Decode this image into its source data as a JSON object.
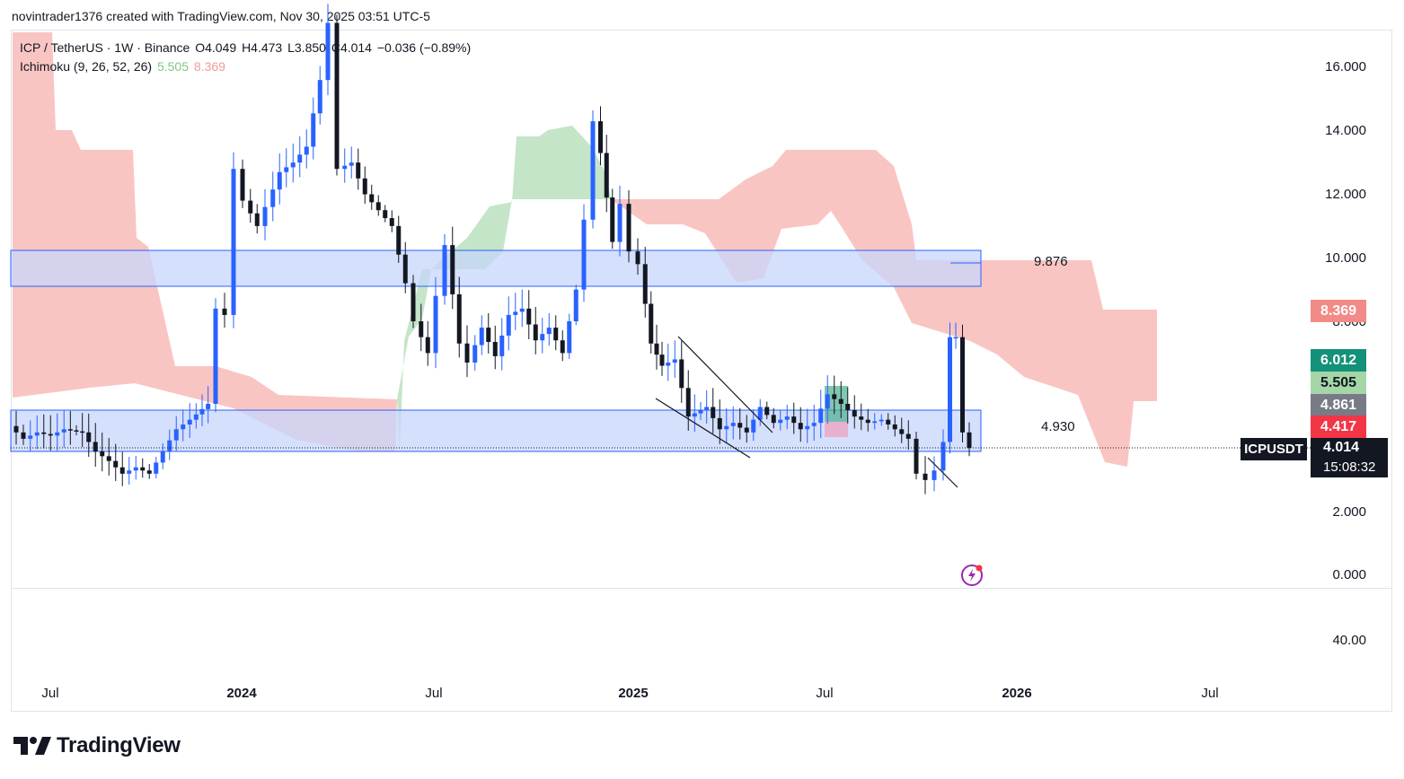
{
  "header": {
    "text": "novintrader1376 created with TradingView.com, Nov 30, 2025 03:51 UTC-5"
  },
  "legend": {
    "symbol": "ICP / TetherUS · 1W · Binance",
    "open": "O4.049",
    "high": "H4.473",
    "low": "L3.850",
    "close": "C4.014",
    "change": "−0.036 (−0.89%)",
    "indicator": "Ichimoku (9, 26, 52, 26)",
    "ind_value1": "5.505",
    "ind_value2": "8.369"
  },
  "y_axis": {
    "ticks": [
      "16.000",
      "14.000",
      "12.000",
      "10.000",
      "8.000",
      "2.000",
      "0.000"
    ],
    "lower_pane_tick": "40.00"
  },
  "x_axis": {
    "ticks": [
      {
        "label": "Jul",
        "bold": false
      },
      {
        "label": "2024",
        "bold": true
      },
      {
        "label": "Jul",
        "bold": false
      },
      {
        "label": "2025",
        "bold": true
      },
      {
        "label": "Jul",
        "bold": false
      },
      {
        "label": "2026",
        "bold": true
      },
      {
        "label": "Jul",
        "bold": false
      }
    ]
  },
  "annotations": {
    "upper_zone": "9.876",
    "lower_zone": "4.930"
  },
  "price_labels": {
    "span_b": "8.369",
    "base": "6.012",
    "span_a": "5.505",
    "conversion": "4.861",
    "lagging": "4.417",
    "symbol": "ICPUSDT",
    "last": "4.014",
    "countdown": "15:08:32"
  },
  "colors": {
    "up": "#2962ff",
    "down": "#131722",
    "cloud_bear": "#f7b2ae",
    "cloud_bull": "#b5dfb9",
    "zone": "#c7d5fb",
    "zone_border": "#2962ff",
    "label_span_b": "#f28b88",
    "label_base": "#139179",
    "label_span_a": "#a5d6a7",
    "label_conversion": "#787b86",
    "label_lagging": "#f23645"
  },
  "branding": {
    "logo_text": "TradingView"
  }
}
